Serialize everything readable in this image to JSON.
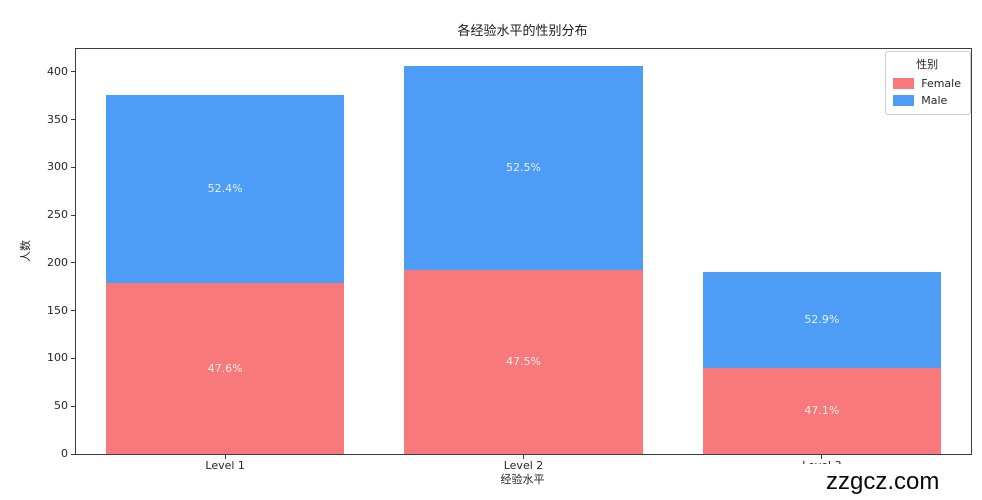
{
  "chart_data": {
    "type": "bar",
    "stacked": true,
    "title": "各经验水平的性别分布",
    "xlabel": "经验水平",
    "ylabel": "人数",
    "categories": [
      "Level 1",
      "Level 2",
      "Level 3"
    ],
    "series": [
      {
        "name": "Female",
        "color": "#F8797C",
        "values": [
          179,
          193,
          90
        ],
        "percent_labels": [
          "47.6%",
          "47.5%",
          "47.1%"
        ]
      },
      {
        "name": "Male",
        "color": "#4D9DF7",
        "values": [
          197,
          213,
          101
        ],
        "percent_labels": [
          "52.4%",
          "52.5%",
          "52.9%"
        ]
      }
    ],
    "totals": [
      376,
      406,
      191
    ],
    "ylim": [
      0,
      424
    ],
    "yticks": [
      0,
      50,
      100,
      150,
      200,
      250,
      300,
      350,
      400
    ],
    "grid": false,
    "legend": {
      "title": "性别",
      "position": "upper right"
    },
    "bar_label_color": "rgba(255,255,255,0.85)",
    "axis_color": "#3c3c3c"
  },
  "watermark": {
    "text": "zzgcz.com"
  }
}
